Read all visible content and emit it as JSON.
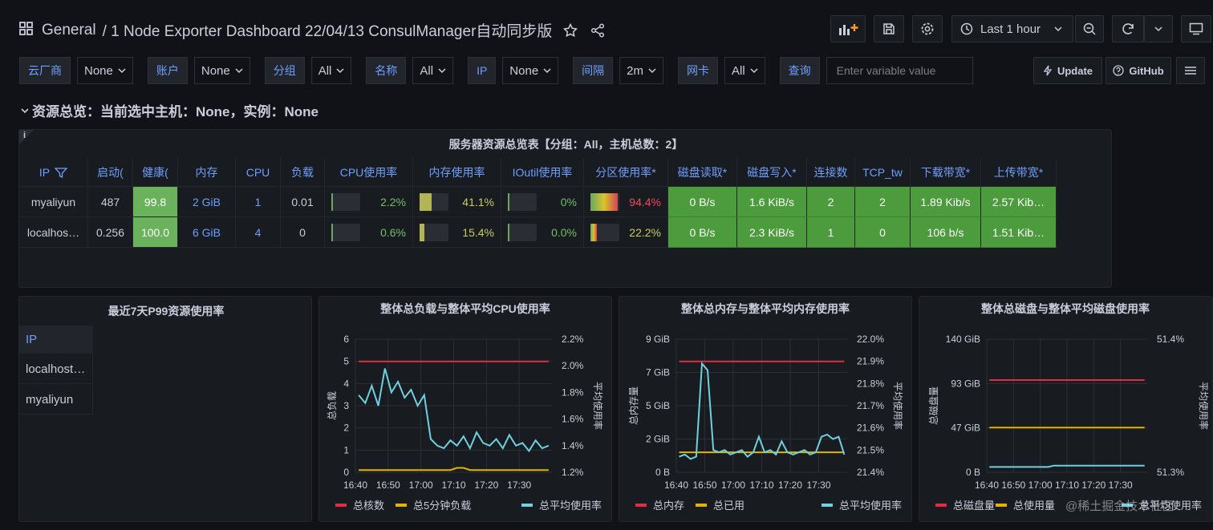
{
  "header": {
    "breadcrumb_root": "General",
    "dashboard_title": "/ 1 Node Exporter Dashboard 22/04/13 ConsulManager自动同步版",
    "time_range": "Last 1 hour"
  },
  "variables": [
    {
      "label": "云厂商",
      "value": "None"
    },
    {
      "label": "账户",
      "value": "None"
    },
    {
      "label": "分组",
      "value": "All"
    },
    {
      "label": "名称",
      "value": "All"
    },
    {
      "label": "IP",
      "value": "None"
    },
    {
      "label": "间隔",
      "value": "2m"
    },
    {
      "label": "网卡",
      "value": "All"
    },
    {
      "label": "查询",
      "placeholder": "Enter variable value"
    }
  ],
  "buttons": [
    "Update",
    "GitHub"
  ],
  "row_title": "资源总览：当前选中主机：None，实例：None",
  "table": {
    "title": "服务器资源总览表【分组：All，主机总数：2】",
    "columns": [
      "IP",
      "启动(",
      "健康(",
      "内存",
      "CPU",
      "负载",
      "CPU使用率",
      "内存使用率",
      "IOutil使用率",
      "分区使用率*",
      "磁盘读取*",
      "磁盘写入*",
      "连接数",
      "TCP_tw",
      "下载带宽*",
      "上传带宽*"
    ],
    "rows": [
      [
        "myaliyun",
        "487",
        "99.8",
        "2 GiB",
        "1",
        "0.01",
        "2.2%",
        "41.1%",
        "0%",
        "94.4%",
        "0 B/s",
        "1.6 KiB/s",
        "2",
        "2",
        "1.89 Kib/s",
        "2.57 Kib…"
      ],
      [
        "localhos…",
        "0.256",
        "100.0",
        "6 GiB",
        "4",
        "0",
        "0.6%",
        "15.4%",
        "0.0%",
        "22.2%",
        "0 B/s",
        "2.3 KiB/s",
        "1",
        "0",
        "106 b/s",
        "1.51 Kib…"
      ]
    ]
  },
  "p99": {
    "title": "最近7天P99资源使用率",
    "column": "IP",
    "rows": [
      "localhost…",
      "myaliyun"
    ]
  },
  "chart_data": [
    {
      "type": "line",
      "title": "整体总负载与整体平均CPU使用率",
      "ylabel": "总负载",
      "y2label": "平均使用率",
      "grid": true,
      "x": [
        "16:41",
        "16:43",
        "16:45",
        "16:47",
        "16:49",
        "16:51",
        "16:53",
        "16:55",
        "16:57",
        "16:59",
        "17:01",
        "17:03",
        "17:05",
        "17:07",
        "17:09",
        "17:11",
        "17:13",
        "17:15",
        "17:17",
        "17:19",
        "17:21",
        "17:23",
        "17:25",
        "17:27",
        "17:29",
        "17:31",
        "17:33",
        "17:35",
        "17:37",
        "17:39"
      ],
      "xlim": [
        "16:40",
        "17:40"
      ],
      "xticks": [
        "16:40",
        "16:50",
        "17:00",
        "17:10",
        "17:20",
        "17:30"
      ],
      "ylim": [
        0,
        6
      ],
      "yticks": [
        0,
        1,
        2,
        3,
        4,
        5,
        6
      ],
      "y2lim": [
        1.2,
        2.2
      ],
      "y2ticks": [
        {
          "value": 1.2,
          "label": "1.2%"
        },
        {
          "value": 1.4,
          "label": "1.4%"
        },
        {
          "value": 1.6,
          "label": "1.6%"
        },
        {
          "value": 1.8,
          "label": "1.8%"
        },
        {
          "value": 2.0,
          "label": "2.0%"
        },
        {
          "value": 2.2,
          "label": "2.2%"
        }
      ],
      "series": [
        {
          "name": "总核数",
          "color": "#e02f44",
          "values": [
            5,
            5,
            5,
            5,
            5,
            5,
            5,
            5,
            5,
            5,
            5,
            5,
            5,
            5,
            5,
            5,
            5,
            5,
            5,
            5,
            5,
            5,
            5,
            5,
            5,
            5,
            5,
            5,
            5,
            5
          ]
        },
        {
          "name": "总5分钟负载",
          "color": "#e0b400",
          "values": [
            0.1,
            0.1,
            0.1,
            0.1,
            0.1,
            0.1,
            0.1,
            0.1,
            0.1,
            0.1,
            0.1,
            0.1,
            0.1,
            0.1,
            0.1,
            0.2,
            0.2,
            0.1,
            0.1,
            0.1,
            0.1,
            0.1,
            0.1,
            0.1,
            0.1,
            0.1,
            0.1,
            0.1,
            0.1,
            0.1
          ]
        },
        {
          "name": "总平均使用率",
          "color": "#6ed0e0",
          "axis": "y2",
          "values": [
            1.78,
            1.72,
            1.85,
            1.7,
            1.98,
            1.8,
            1.88,
            1.76,
            1.82,
            1.7,
            1.78,
            1.45,
            1.4,
            1.38,
            1.44,
            1.4,
            1.47,
            1.38,
            1.5,
            1.42,
            1.4,
            1.45,
            1.38,
            1.48,
            1.4,
            1.42,
            1.36,
            1.44,
            1.38,
            1.4
          ]
        }
      ]
    },
    {
      "type": "line",
      "title": "整体总内存与整体平均内存使用率",
      "ylabel": "总内存量",
      "y2label": "平均使用率",
      "grid": true,
      "x": [
        "16:41",
        "16:43",
        "16:45",
        "16:47",
        "16:49",
        "16:51",
        "16:53",
        "16:55",
        "16:57",
        "16:59",
        "17:01",
        "17:03",
        "17:05",
        "17:07",
        "17:09",
        "17:11",
        "17:13",
        "17:15",
        "17:17",
        "17:19",
        "17:21",
        "17:23",
        "17:25",
        "17:27",
        "17:29",
        "17:31",
        "17:33",
        "17:35",
        "17:37",
        "17:39"
      ],
      "xlim": [
        "16:40",
        "17:40"
      ],
      "xticks": [
        "16:40",
        "16:50",
        "17:00",
        "17:10",
        "17:20",
        "17:30"
      ],
      "ylim": [
        0,
        9
      ],
      "yticks": [
        {
          "value": 0,
          "label": "0 B"
        },
        {
          "value": 2.25,
          "label": "2 GiB"
        },
        {
          "value": 4.5,
          "label": "5 GiB"
        },
        {
          "value": 6.75,
          "label": "7 GiB"
        },
        {
          "value": 9,
          "label": "9 GiB"
        }
      ],
      "y2lim": [
        21.4,
        22.0
      ],
      "y2ticks": [
        {
          "value": 21.4,
          "label": "21.4%"
        },
        {
          "value": 21.5,
          "label": "21.5%"
        },
        {
          "value": 21.6,
          "label": "21.6%"
        },
        {
          "value": 21.7,
          "label": "21.7%"
        },
        {
          "value": 21.8,
          "label": "21.8%"
        },
        {
          "value": 21.9,
          "label": "21.9%"
        },
        {
          "value": 22.0,
          "label": "22.0%"
        }
      ],
      "series": [
        {
          "name": "总内存",
          "color": "#e02f44",
          "values": [
            7.5,
            7.5,
            7.5,
            7.5,
            7.5,
            7.5,
            7.5,
            7.5,
            7.5,
            7.5,
            7.5,
            7.5,
            7.5,
            7.5,
            7.5,
            7.5,
            7.5,
            7.5,
            7.5,
            7.5,
            7.5,
            7.5,
            7.5,
            7.5,
            7.5,
            7.5,
            7.5,
            7.5,
            7.5,
            7.5
          ]
        },
        {
          "name": "总已用",
          "color": "#e0b400",
          "values": [
            1.35,
            1.35,
            1.35,
            1.35,
            1.35,
            1.35,
            1.35,
            1.35,
            1.35,
            1.35,
            1.35,
            1.35,
            1.35,
            1.35,
            1.35,
            1.35,
            1.35,
            1.35,
            1.35,
            1.35,
            1.35,
            1.35,
            1.35,
            1.35,
            1.35,
            1.35,
            1.35,
            1.35,
            1.35,
            1.35
          ]
        },
        {
          "name": "总平均使用率",
          "color": "#6ed0e0",
          "axis": "y2",
          "values": [
            21.47,
            21.48,
            21.46,
            21.47,
            21.89,
            21.86,
            21.5,
            21.49,
            21.5,
            21.48,
            21.49,
            21.5,
            21.47,
            21.49,
            21.56,
            21.49,
            21.5,
            21.48,
            21.54,
            21.49,
            21.48,
            21.49,
            21.5,
            21.48,
            21.49,
            21.56,
            21.57,
            21.55,
            21.56,
            21.48
          ]
        }
      ]
    },
    {
      "type": "line",
      "title": "整体总磁盘与整体平均磁盘使用率",
      "ylabel": "总磁盘量",
      "y2label": "平均使用率",
      "grid": true,
      "x": [
        "16:41",
        "16:43",
        "16:45",
        "16:47",
        "16:49",
        "16:51",
        "16:53",
        "16:55",
        "16:57",
        "16:59",
        "17:01",
        "17:03",
        "17:05",
        "17:07",
        "17:09",
        "17:11",
        "17:13",
        "17:15",
        "17:17",
        "17:19",
        "17:21",
        "17:23",
        "17:25",
        "17:27",
        "17:29",
        "17:31",
        "17:33",
        "17:35",
        "17:37",
        "17:39"
      ],
      "xlim": [
        "16:40",
        "17:40"
      ],
      "xticks": [
        "16:40",
        "16:50",
        "17:00",
        "17:10",
        "17:20",
        "17:30"
      ],
      "ylim": [
        0,
        140
      ],
      "yticks": [
        {
          "value": 0,
          "label": "0 B"
        },
        {
          "value": 46.67,
          "label": "47 GiB"
        },
        {
          "value": 93.33,
          "label": "93 GiB"
        },
        {
          "value": 140,
          "label": "140 GiB"
        }
      ],
      "y2lim": [
        51.3,
        51.4
      ],
      "y2ticks": [
        {
          "value": 51.3,
          "label": "51.3%"
        },
        {
          "value": 51.4,
          "label": "51.4%"
        }
      ],
      "series": [
        {
          "name": "总磁盘量",
          "color": "#e02f44",
          "values": [
            97,
            97,
            97,
            97,
            97,
            97,
            97,
            97,
            97,
            97,
            97,
            97,
            97,
            97,
            97,
            97,
            97,
            97,
            97,
            97,
            97,
            97,
            97,
            97,
            97,
            97,
            97,
            97,
            97,
            97
          ]
        },
        {
          "name": "总使用量",
          "color": "#e0b400",
          "values": [
            47,
            47,
            47,
            47,
            47,
            47,
            47,
            47,
            47,
            47,
            47,
            47,
            47,
            47,
            47,
            47,
            47,
            47,
            47,
            47,
            47,
            47,
            47,
            47,
            47,
            47,
            47,
            47,
            47,
            47
          ]
        },
        {
          "name": "总平均使用率",
          "color": "#6ed0e0",
          "axis": "y2",
          "values": [
            51.304,
            51.304,
            51.304,
            51.304,
            51.304,
            51.304,
            51.304,
            51.304,
            51.304,
            51.304,
            51.304,
            51.304,
            51.305,
            51.305,
            51.305,
            51.305,
            51.305,
            51.305,
            51.305,
            51.305,
            51.305,
            51.305,
            51.305,
            51.305,
            51.305,
            51.305,
            51.305,
            51.305,
            51.305,
            51.305
          ]
        }
      ]
    }
  ],
  "watermark": "@稀土掘金技术社区"
}
